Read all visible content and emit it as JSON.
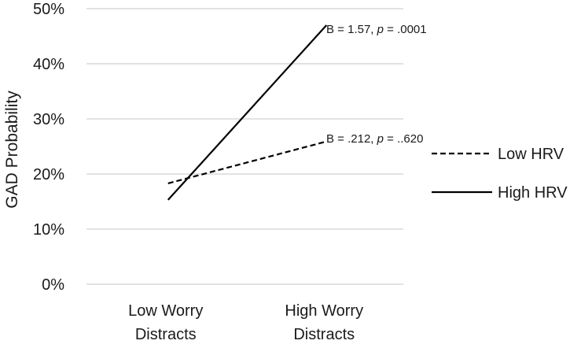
{
  "chart_data": {
    "type": "line",
    "categories": [
      "Low Worry|Distracts",
      "High Worry|Distracts"
    ],
    "ylabel": "GAD Probability",
    "ylim": [
      0,
      0.5
    ],
    "yticks": [
      0,
      0.1,
      0.2,
      0.3,
      0.4,
      0.5
    ],
    "ytick_labels": [
      "0%",
      "10%",
      "20%",
      "30%",
      "40%",
      "50%"
    ],
    "grid": true,
    "legend_position": "right",
    "series": [
      {
        "name": "Low HRV",
        "style": "dashed",
        "color": "#000000",
        "values": [
          0.183,
          0.259
        ],
        "annotation": {
          "pre": "B = .212, ",
          "p": "p",
          "post": " = ..620"
        }
      },
      {
        "name": "High HRV",
        "style": "solid",
        "color": "#000000",
        "values": [
          0.153,
          0.47
        ],
        "annotation": {
          "pre": "B = 1.57, ",
          "p": "p",
          "post": " = .0001"
        }
      }
    ]
  }
}
